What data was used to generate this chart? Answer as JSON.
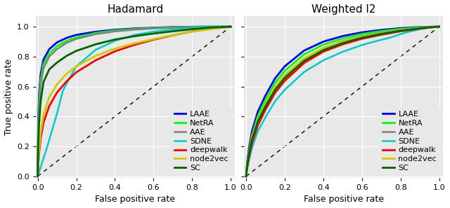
{
  "titles": [
    "Hadamard",
    "Weighted l2"
  ],
  "xlabel": "False positive rate",
  "ylabel": "True positive rate",
  "methods": [
    "LAAE",
    "NetRA",
    "AAE",
    "SDNE",
    "deepwalk",
    "node2vec",
    "SC"
  ],
  "colors": [
    "#0000ff",
    "#00ff00",
    "#808080",
    "#00cccc",
    "#ff0000",
    "#cccc00",
    "#006400"
  ],
  "linewidths": [
    2.0,
    2.0,
    1.8,
    1.8,
    2.0,
    2.0,
    2.0
  ],
  "background_color": "#e8e8e8",
  "hadamard": {
    "LAAE": {
      "x": [
        0,
        0.003,
        0.007,
        0.015,
        0.03,
        0.06,
        0.1,
        0.15,
        0.2,
        0.3,
        0.4,
        0.5,
        0.6,
        0.7,
        0.8,
        0.9,
        1.0
      ],
      "y": [
        0,
        0.38,
        0.55,
        0.68,
        0.78,
        0.85,
        0.895,
        0.925,
        0.945,
        0.966,
        0.979,
        0.988,
        0.993,
        0.997,
        0.999,
        1.0,
        1.0
      ]
    },
    "NetRA": {
      "x": [
        0,
        0.003,
        0.007,
        0.015,
        0.03,
        0.06,
        0.1,
        0.15,
        0.2,
        0.3,
        0.4,
        0.5,
        0.6,
        0.7,
        0.8,
        0.9,
        1.0
      ],
      "y": [
        0,
        0.33,
        0.5,
        0.64,
        0.75,
        0.82,
        0.87,
        0.905,
        0.928,
        0.958,
        0.974,
        0.984,
        0.991,
        0.995,
        0.998,
        1.0,
        1.0
      ]
    },
    "AAE": {
      "x": [
        0,
        0.003,
        0.007,
        0.015,
        0.03,
        0.06,
        0.1,
        0.15,
        0.2,
        0.3,
        0.4,
        0.5,
        0.6,
        0.7,
        0.8,
        0.9,
        1.0
      ],
      "y": [
        0,
        0.3,
        0.46,
        0.61,
        0.72,
        0.8,
        0.85,
        0.892,
        0.918,
        0.95,
        0.968,
        0.98,
        0.988,
        0.993,
        0.997,
        0.999,
        1.0
      ]
    },
    "SDNE": {
      "x": [
        0,
        0.005,
        0.01,
        0.05,
        0.1,
        0.13,
        0.15,
        0.2,
        0.3,
        0.4,
        0.5,
        0.6,
        0.7,
        0.8,
        0.9,
        1.0
      ],
      "y": [
        0,
        0.02,
        0.04,
        0.2,
        0.42,
        0.57,
        0.62,
        0.735,
        0.845,
        0.905,
        0.944,
        0.967,
        0.981,
        0.991,
        0.997,
        1.0
      ]
    },
    "deepwalk": {
      "x": [
        0,
        0.003,
        0.007,
        0.015,
        0.03,
        0.06,
        0.1,
        0.15,
        0.2,
        0.3,
        0.4,
        0.5,
        0.6,
        0.7,
        0.8,
        0.9,
        1.0
      ],
      "y": [
        0,
        0.08,
        0.15,
        0.25,
        0.36,
        0.47,
        0.56,
        0.635,
        0.695,
        0.775,
        0.835,
        0.878,
        0.913,
        0.942,
        0.968,
        0.986,
        1.0
      ]
    },
    "node2vec": {
      "x": [
        0,
        0.003,
        0.007,
        0.015,
        0.03,
        0.06,
        0.1,
        0.15,
        0.2,
        0.3,
        0.4,
        0.5,
        0.6,
        0.7,
        0.8,
        0.9,
        1.0
      ],
      "y": [
        0,
        0.1,
        0.18,
        0.29,
        0.41,
        0.53,
        0.615,
        0.685,
        0.735,
        0.805,
        0.853,
        0.888,
        0.917,
        0.943,
        0.967,
        0.985,
        1.0
      ]
    },
    "SC": {
      "x": [
        0,
        0.003,
        0.007,
        0.015,
        0.03,
        0.06,
        0.1,
        0.15,
        0.2,
        0.3,
        0.4,
        0.5,
        0.6,
        0.7,
        0.8,
        0.9,
        1.0
      ],
      "y": [
        0,
        0.22,
        0.35,
        0.5,
        0.63,
        0.715,
        0.76,
        0.805,
        0.838,
        0.882,
        0.914,
        0.936,
        0.954,
        0.969,
        0.983,
        0.994,
        1.0
      ]
    }
  },
  "weighted_l2": {
    "LAAE": {
      "x": [
        0,
        0.003,
        0.007,
        0.015,
        0.03,
        0.06,
        0.1,
        0.15,
        0.2,
        0.3,
        0.4,
        0.5,
        0.6,
        0.7,
        0.8,
        0.85,
        0.9,
        0.95,
        1.0
      ],
      "y": [
        0,
        0.06,
        0.11,
        0.19,
        0.3,
        0.43,
        0.54,
        0.655,
        0.735,
        0.84,
        0.9,
        0.937,
        0.962,
        0.978,
        0.99,
        0.994,
        0.997,
        0.999,
        1.0
      ]
    },
    "NetRA": {
      "x": [
        0,
        0.003,
        0.007,
        0.015,
        0.03,
        0.06,
        0.1,
        0.15,
        0.2,
        0.3,
        0.4,
        0.5,
        0.6,
        0.7,
        0.8,
        0.85,
        0.9,
        0.95,
        1.0
      ],
      "y": [
        0,
        0.05,
        0.09,
        0.16,
        0.27,
        0.4,
        0.51,
        0.625,
        0.705,
        0.815,
        0.88,
        0.921,
        0.951,
        0.97,
        0.985,
        0.99,
        0.995,
        0.998,
        1.0
      ]
    },
    "AAE": {
      "x": [
        0,
        0.003,
        0.007,
        0.015,
        0.03,
        0.06,
        0.1,
        0.15,
        0.2,
        0.3,
        0.4,
        0.5,
        0.6,
        0.7,
        0.8,
        0.85,
        0.9,
        0.95,
        1.0
      ],
      "y": [
        0,
        0.04,
        0.08,
        0.14,
        0.24,
        0.37,
        0.475,
        0.592,
        0.672,
        0.786,
        0.857,
        0.904,
        0.937,
        0.959,
        0.978,
        0.985,
        0.992,
        0.997,
        1.0
      ]
    },
    "SDNE": {
      "x": [
        0,
        0.003,
        0.007,
        0.015,
        0.03,
        0.06,
        0.1,
        0.15,
        0.2,
        0.3,
        0.4,
        0.5,
        0.6,
        0.65,
        0.7,
        0.75,
        0.8,
        0.85,
        0.9,
        0.95,
        1.0
      ],
      "y": [
        0,
        0.03,
        0.06,
        0.11,
        0.19,
        0.3,
        0.395,
        0.502,
        0.578,
        0.697,
        0.775,
        0.832,
        0.877,
        0.895,
        0.912,
        0.928,
        0.95,
        0.968,
        0.983,
        0.994,
        1.0
      ]
    },
    "deepwalk": {
      "x": [
        0,
        0.003,
        0.007,
        0.015,
        0.03,
        0.06,
        0.1,
        0.15,
        0.2,
        0.3,
        0.4,
        0.5,
        0.6,
        0.7,
        0.8,
        0.85,
        0.9,
        0.95,
        1.0
      ],
      "y": [
        0,
        0.04,
        0.07,
        0.13,
        0.22,
        0.34,
        0.445,
        0.558,
        0.638,
        0.757,
        0.833,
        0.882,
        0.919,
        0.946,
        0.969,
        0.978,
        0.987,
        0.994,
        1.0
      ]
    },
    "node2vec": {
      "x": [
        0,
        0.003,
        0.007,
        0.015,
        0.03,
        0.06,
        0.1,
        0.15,
        0.2,
        0.3,
        0.4,
        0.5,
        0.6,
        0.7,
        0.8,
        0.85,
        0.9,
        0.95,
        1.0
      ],
      "y": [
        0,
        0.05,
        0.09,
        0.16,
        0.26,
        0.38,
        0.485,
        0.598,
        0.678,
        0.788,
        0.856,
        0.9,
        0.933,
        0.957,
        0.976,
        0.984,
        0.991,
        0.997,
        1.0
      ]
    },
    "SC": {
      "x": [
        0,
        0.003,
        0.007,
        0.015,
        0.03,
        0.06,
        0.1,
        0.15,
        0.2,
        0.3,
        0.4,
        0.5,
        0.6,
        0.7,
        0.8,
        0.85,
        0.9,
        0.95,
        1.0
      ],
      "y": [
        0,
        0.045,
        0.085,
        0.15,
        0.245,
        0.365,
        0.468,
        0.578,
        0.657,
        0.771,
        0.843,
        0.89,
        0.926,
        0.952,
        0.973,
        0.981,
        0.989,
        0.996,
        1.0
      ]
    }
  },
  "tick_fontsize": 8,
  "label_fontsize": 9,
  "title_fontsize": 11,
  "legend_fontsize": 8
}
